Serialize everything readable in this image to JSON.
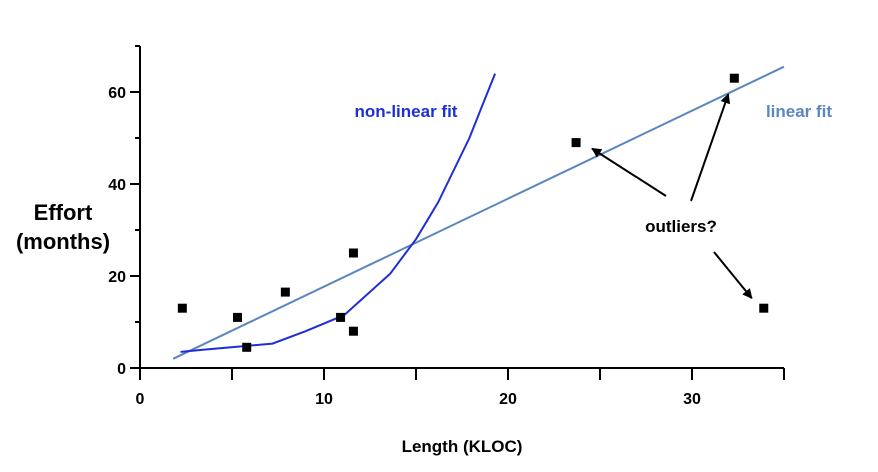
{
  "chart_data": {
    "type": "scatter",
    "xlabel": "Length (KLOC)",
    "ylabel_lines": [
      "Effort",
      "(months)"
    ],
    "xlim": [
      0,
      35
    ],
    "ylim": [
      0,
      70
    ],
    "x_ticks": [
      0,
      10,
      20,
      30
    ],
    "x_minor_ticks": [
      5,
      15,
      25,
      35
    ],
    "y_ticks": [
      0,
      20,
      40,
      60
    ],
    "y_minor_ticks": [
      10,
      30,
      50,
      70
    ],
    "grid": false,
    "legend": "none",
    "points": [
      {
        "x": 2.3,
        "y": 13
      },
      {
        "x": 5.3,
        "y": 11
      },
      {
        "x": 5.8,
        "y": 4.5
      },
      {
        "x": 7.9,
        "y": 16.5
      },
      {
        "x": 10.9,
        "y": 11
      },
      {
        "x": 11.6,
        "y": 25
      },
      {
        "x": 11.6,
        "y": 8
      },
      {
        "x": 23.7,
        "y": 49
      },
      {
        "x": 32.3,
        "y": 63
      },
      {
        "x": 33.9,
        "y": 13
      }
    ],
    "series": [
      {
        "name": "linear fit",
        "color": "#5b87bd",
        "x": [
          1.8,
          35
        ],
        "y": [
          2,
          65.5
        ]
      },
      {
        "name": "non-linear fit",
        "color": "#1f2fd6",
        "x": [
          2.2,
          3.5,
          5.5,
          7.2,
          9,
          11.1,
          13.6,
          15,
          16.2,
          17.9,
          18.6,
          19.3
        ],
        "y": [
          3.5,
          4,
          4.7,
          5.3,
          8,
          11.5,
          20.5,
          28,
          36,
          50,
          57,
          64
        ]
      }
    ],
    "annotations": [
      {
        "text": "non-linear fit",
        "color": "#1f2fd6"
      },
      {
        "text": "linear fit",
        "color": "#5b87bd"
      },
      {
        "text": "outliers?",
        "color": "#000000"
      }
    ]
  }
}
